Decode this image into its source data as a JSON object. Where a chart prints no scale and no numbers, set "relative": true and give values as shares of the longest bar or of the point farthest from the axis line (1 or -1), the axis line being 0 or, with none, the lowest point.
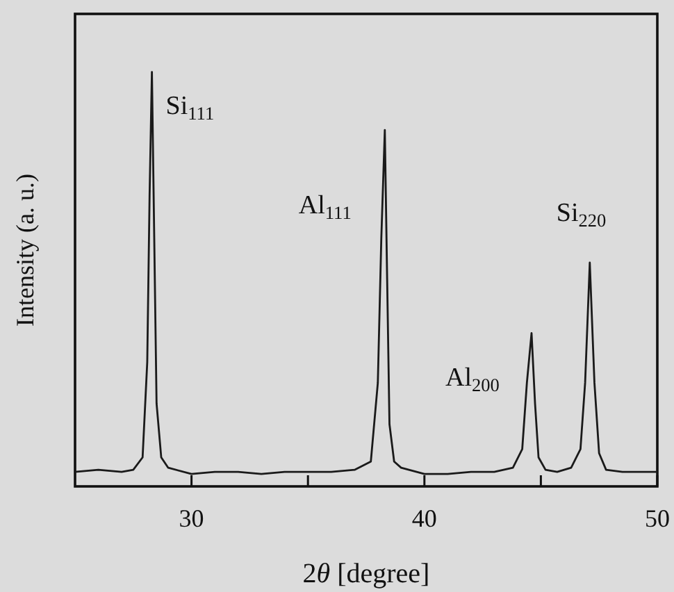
{
  "chart_data": {
    "type": "line",
    "relative": true,
    "xlabel": "2θ [degree]",
    "ylabel": "Intensity (a. u.)",
    "xlim": [
      25,
      50
    ],
    "xticks": [
      30,
      {
        "value": 35,
        "label": null
      },
      40,
      {
        "value": 45,
        "label": null
      },
      50
    ],
    "tick_labels": "x",
    "grid": false,
    "line_style": "solid",
    "x": [
      25,
      26,
      27,
      27.5,
      27.9,
      28.1,
      28.2,
      28.3,
      28.4,
      28.5,
      28.7,
      29,
      30,
      31,
      32,
      33,
      34,
      35,
      36,
      37,
      37.7,
      38.0,
      38.15,
      38.3,
      38.4,
      38.5,
      38.7,
      39,
      40,
      41,
      42,
      43,
      43.8,
      44.2,
      44.4,
      44.6,
      44.75,
      44.9,
      45.2,
      45.7,
      46.3,
      46.7,
      46.9,
      47.1,
      47.3,
      47.5,
      47.8,
      48.5,
      49.3,
      50
    ],
    "series": [
      {
        "color": "#1a1a1a",
        "values": [
          0.035,
          0.04,
          0.035,
          0.04,
          0.07,
          0.3,
          0.7,
          1,
          0.6,
          0.2,
          0.07,
          0.045,
          0.03,
          0.035,
          0.035,
          0.03,
          0.035,
          0.035,
          0.035,
          0.04,
          0.06,
          0.25,
          0.6,
          0.86,
          0.5,
          0.15,
          0.06,
          0.045,
          0.03,
          0.03,
          0.035,
          0.035,
          0.045,
          0.09,
          0.25,
          0.37,
          0.2,
          0.07,
          0.04,
          0.035,
          0.045,
          0.09,
          0.25,
          0.54,
          0.25,
          0.08,
          0.04,
          0.035,
          0.035,
          0.035
        ]
      }
    ],
    "annotations": [
      {
        "text": "Si$_{111}$",
        "x": 28.3,
        "y": 1
      },
      {
        "text": "Al$_{111}$",
        "x": 38.3,
        "y": 0.86
      },
      {
        "text": "Al$_{200}$",
        "x": 44.6,
        "y": 0.37
      },
      {
        "text": "Si$_{220}$",
        "x": 47.1,
        "y": 0.54
      }
    ]
  }
}
